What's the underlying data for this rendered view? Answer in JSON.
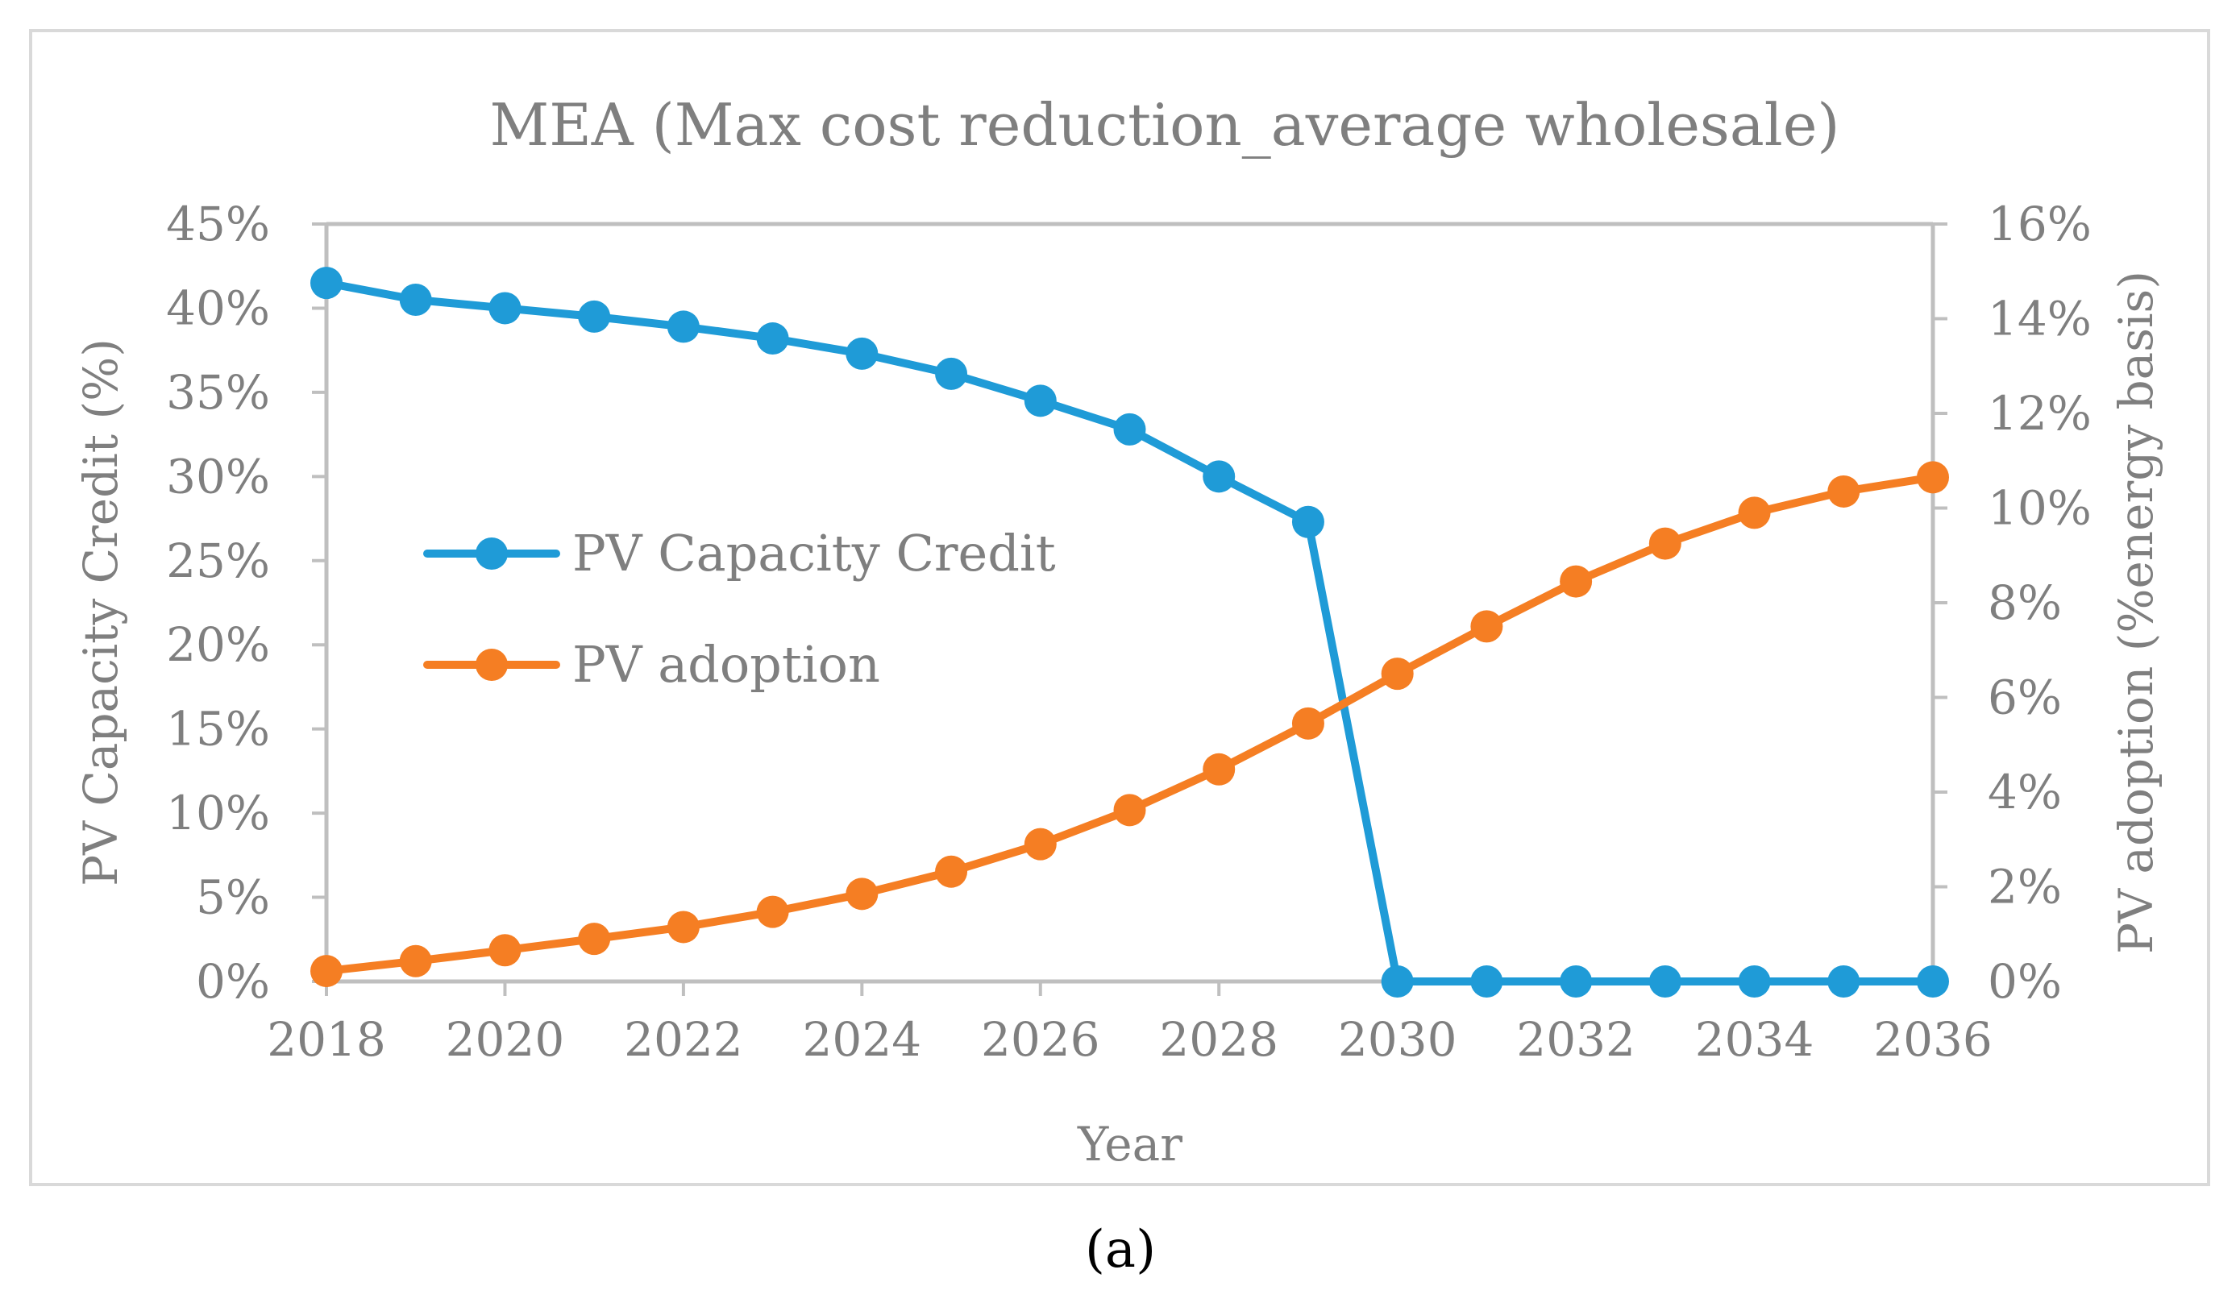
{
  "chart_data": {
    "type": "line",
    "title": "MEA (Max cost reduction_average wholesale)",
    "xlabel": "Year",
    "ylabel": "PV Capacity Credit (%)",
    "y2label": "PV adoption (%energy basis)",
    "caption": "(a)",
    "x": [
      2018,
      2019,
      2020,
      2021,
      2022,
      2023,
      2024,
      2025,
      2026,
      2027,
      2028,
      2029,
      2030,
      2031,
      2032,
      2033,
      2034,
      2035,
      2036
    ],
    "xlim": [
      2018,
      2036
    ],
    "xticks": [
      2018,
      2020,
      2022,
      2024,
      2026,
      2028,
      2030,
      2032,
      2034,
      2036
    ],
    "xtick_labels": [
      "2018",
      "2020",
      "2022",
      "2024",
      "2026",
      "2028",
      "2030",
      "2032",
      "2034",
      "2036"
    ],
    "ylim": [
      0,
      45
    ],
    "yticks": [
      0,
      5,
      10,
      15,
      20,
      25,
      30,
      35,
      40,
      45
    ],
    "ytick_labels": [
      "0%",
      "5%",
      "10%",
      "15%",
      "20%",
      "25%",
      "30%",
      "35%",
      "40%",
      "45%"
    ],
    "y2lim": [
      0,
      16
    ],
    "y2ticks": [
      0,
      2,
      4,
      6,
      8,
      10,
      12,
      14,
      16
    ],
    "y2tick_labels": [
      "0%",
      "2%",
      "4%",
      "6%",
      "8%",
      "10%",
      "12%",
      "14%",
      "16%"
    ],
    "grid": false,
    "legend_position": "center-left",
    "series": [
      {
        "name": "PV Capacity Credit",
        "axis": "left",
        "color": "#1f9bd7",
        "values": [
          41.5,
          40.5,
          40.0,
          39.5,
          38.9,
          38.2,
          37.3,
          36.1,
          34.5,
          32.8,
          30.0,
          27.3,
          0,
          0,
          0,
          0,
          0,
          0,
          0
        ]
      },
      {
        "name": "PV adoption",
        "axis": "right",
        "color": "#f57e23",
        "values": [
          0.22,
          0.43,
          0.66,
          0.9,
          1.15,
          1.47,
          1.85,
          2.32,
          2.9,
          3.62,
          4.48,
          5.45,
          6.5,
          7.5,
          8.45,
          9.25,
          9.9,
          10.35,
          10.65
        ]
      }
    ]
  }
}
